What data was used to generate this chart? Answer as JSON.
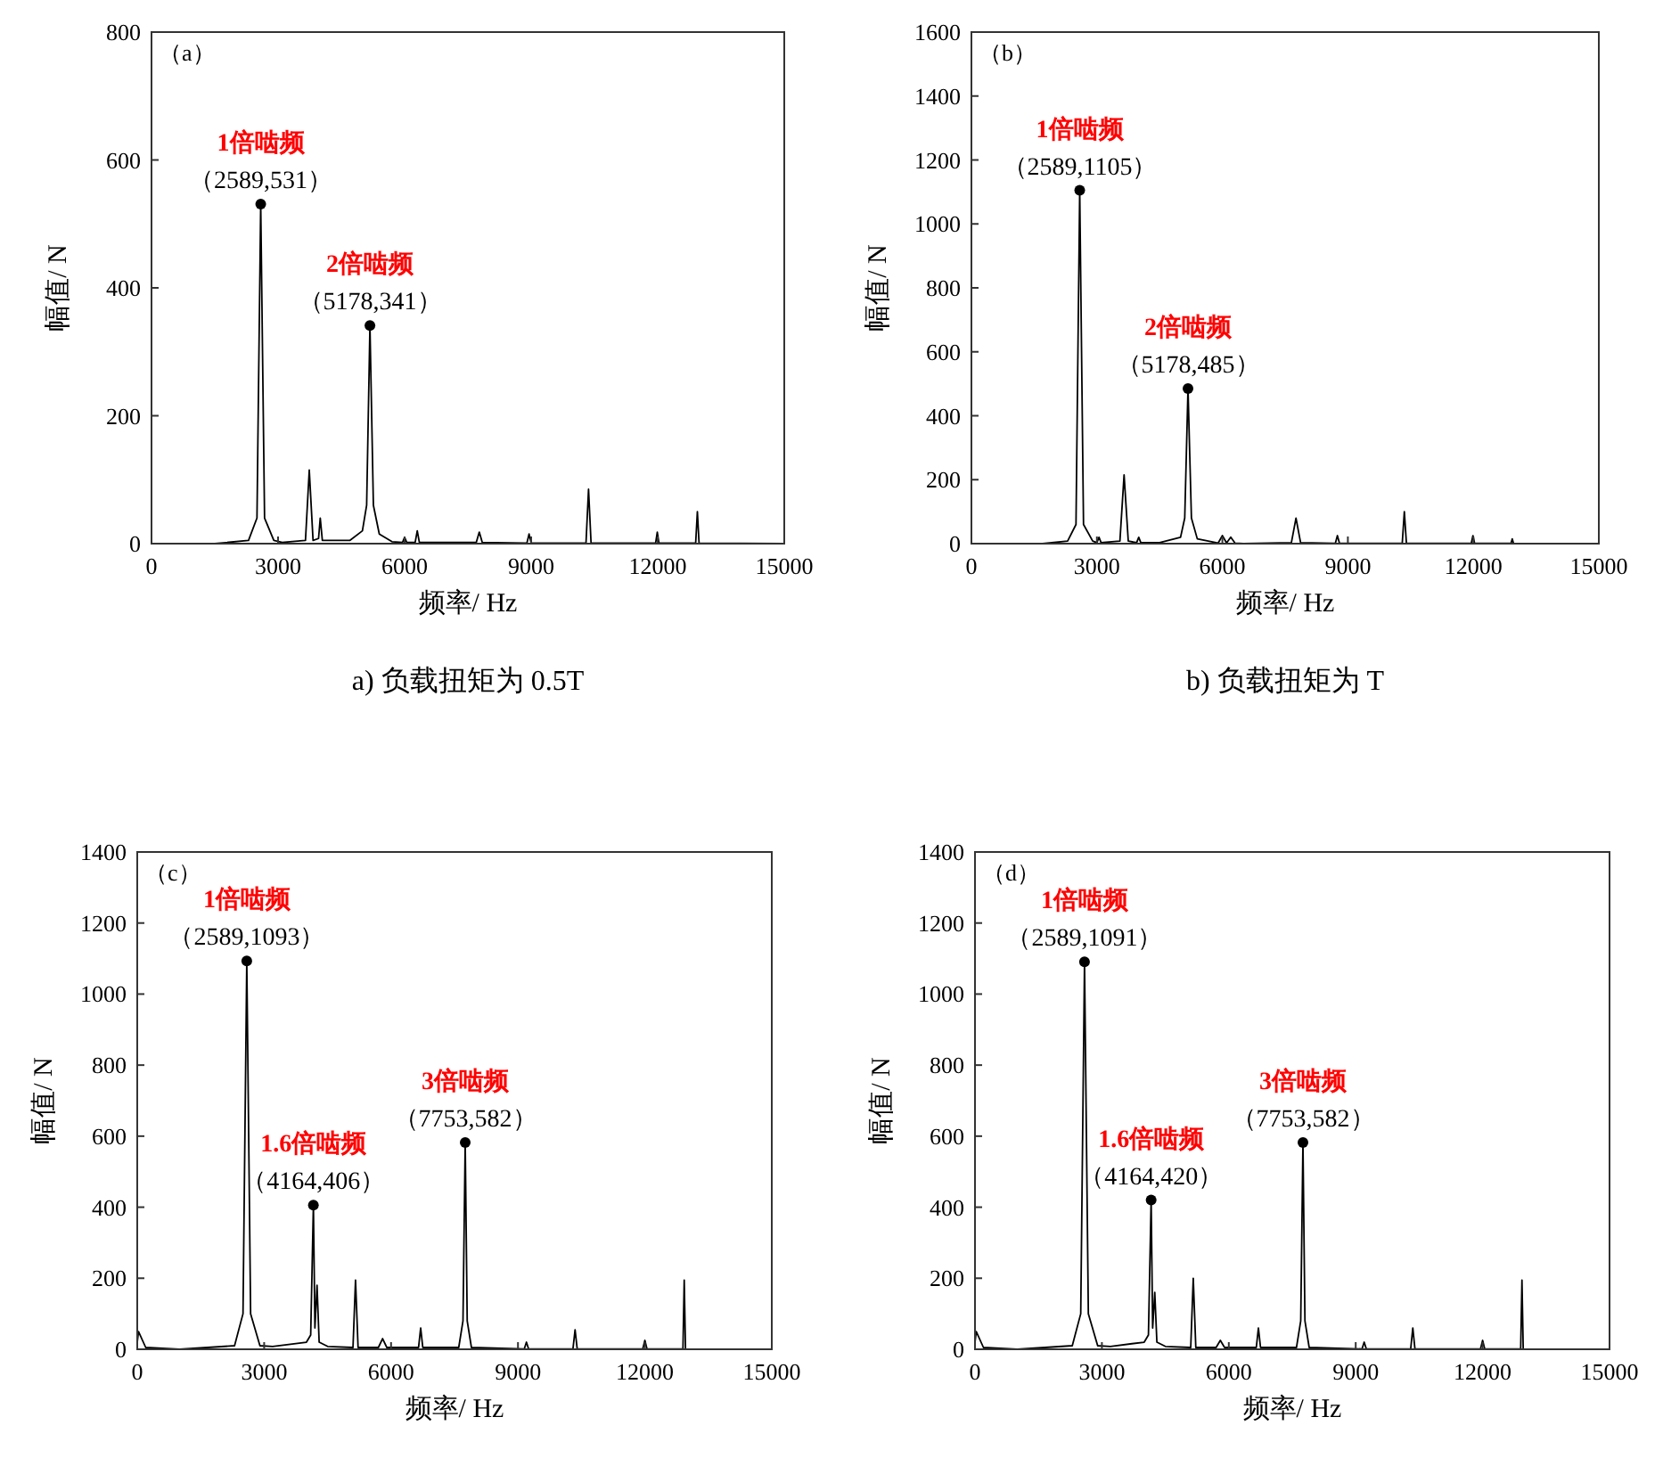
{
  "chart_data": [
    {
      "type": "line",
      "title": "（a）",
      "subtitle": "a) 负载扭矩为 0.5T",
      "xlabel": "频率/ Hz",
      "ylabel": "幅值/ N",
      "xlim": [
        0,
        15000
      ],
      "ylim": [
        0,
        800
      ],
      "xticks": [
        0,
        3000,
        6000,
        9000,
        12000,
        15000
      ],
      "yticks": [
        0,
        200,
        400,
        600,
        800
      ],
      "grid": false,
      "marker": "none",
      "line_style": "solid",
      "series": [
        {
          "color": "#000000",
          "x": [
            0,
            1500,
            2300,
            2500,
            2589,
            2680,
            2900,
            3100,
            3650,
            3740,
            3830,
            3960,
            4000,
            4050,
            4700,
            5000,
            5100,
            5178,
            5260,
            5400,
            5700,
            5950,
            6000,
            6050,
            6250,
            6300,
            6350,
            7700,
            7770,
            7840,
            8900,
            8950,
            9000,
            10300,
            10360,
            10420,
            11950,
            11990,
            12030,
            12900,
            12940,
            12980,
            15000
          ],
          "values": [
            0,
            0,
            5,
            40,
            531,
            40,
            5,
            2,
            5,
            115,
            5,
            8,
            40,
            5,
            5,
            20,
            60,
            341,
            60,
            15,
            3,
            2,
            10,
            2,
            2,
            20,
            2,
            2,
            18,
            2,
            1,
            15,
            1,
            1,
            85,
            1,
            1,
            18,
            1,
            1,
            50,
            1,
            0
          ]
        }
      ],
      "annotations": [
        {
          "text": "1倍啮频",
          "x": 2589,
          "y": 531
        },
        {
          "text": "（2589,531）",
          "x": 2589,
          "y": 531
        },
        {
          "text": "2倍啮频",
          "x": 5178,
          "y": 341
        },
        {
          "text": "（5178,341）",
          "x": 5178,
          "y": 341
        }
      ]
    },
    {
      "type": "line",
      "title": "（b）",
      "subtitle": "b) 负载扭矩为 T",
      "xlabel": "频率/ Hz",
      "ylabel": "幅值/ N",
      "xlim": [
        0,
        15000
      ],
      "ylim": [
        0,
        1600
      ],
      "xticks": [
        0,
        3000,
        6000,
        9000,
        12000,
        15000
      ],
      "yticks": [
        0,
        200,
        400,
        600,
        800,
        1000,
        1200,
        1400,
        1600
      ],
      "grid": false,
      "marker": "none",
      "line_style": "solid",
      "series": [
        {
          "color": "#000000",
          "x": [
            0,
            1700,
            2300,
            2500,
            2589,
            2680,
            2900,
            3000,
            3050,
            3100,
            3550,
            3650,
            3750,
            3950,
            4000,
            4050,
            4500,
            5000,
            5100,
            5178,
            5260,
            5400,
            5900,
            6000,
            6100,
            6200,
            6300,
            6500,
            7650,
            7760,
            7870,
            8700,
            8750,
            8800,
            10300,
            10350,
            10400,
            11950,
            11990,
            12030,
            12900,
            12930,
            12960,
            15000
          ],
          "values": [
            0,
            0,
            8,
            60,
            1105,
            60,
            8,
            3,
            20,
            3,
            8,
            215,
            8,
            3,
            20,
            3,
            3,
            20,
            80,
            485,
            80,
            15,
            2,
            25,
            2,
            20,
            2,
            0,
            3,
            80,
            3,
            1,
            25,
            1,
            1,
            100,
            1,
            1,
            25,
            1,
            1,
            15,
            1,
            0
          ]
        }
      ],
      "annotations": [
        {
          "text": "1倍啮频",
          "x": 2589,
          "y": 1105
        },
        {
          "text": "（2589,1105）",
          "x": 2589,
          "y": 1105
        },
        {
          "text": "2倍啮频",
          "x": 5178,
          "y": 485
        },
        {
          "text": "（5178,485）",
          "x": 5178,
          "y": 485
        }
      ]
    },
    {
      "type": "line",
      "title": "（c）",
      "xlabel": "频率/ Hz",
      "ylabel": "幅值/ N",
      "xlim": [
        0,
        15000
      ],
      "ylim": [
        0,
        1400
      ],
      "xticks": [
        0,
        3000,
        6000,
        9000,
        12000,
        15000
      ],
      "yticks": [
        0,
        200,
        400,
        600,
        800,
        1000,
        1200,
        1400
      ],
      "grid": false,
      "marker": "none",
      "line_style": "solid",
      "series": [
        {
          "color": "#000000",
          "x": [
            0,
            30,
            200,
            1000,
            2300,
            2500,
            2589,
            2680,
            2900,
            3200,
            4000,
            4100,
            4164,
            4200,
            4250,
            4300,
            4500,
            5100,
            5160,
            5220,
            5700,
            5800,
            5900,
            6650,
            6700,
            6750,
            7600,
            7700,
            7753,
            7800,
            7900,
            9150,
            9200,
            9250,
            10300,
            10350,
            10400,
            11950,
            12000,
            12050,
            12900,
            12930,
            12960,
            15000
          ],
          "values": [
            20,
            50,
            5,
            0,
            10,
            100,
            1093,
            100,
            10,
            8,
            20,
            40,
            406,
            60,
            180,
            20,
            8,
            5,
            195,
            5,
            5,
            30,
            5,
            5,
            60,
            5,
            5,
            80,
            582,
            80,
            5,
            1,
            20,
            1,
            1,
            55,
            1,
            1,
            25,
            1,
            1,
            195,
            1,
            0
          ]
        }
      ],
      "annotations": [
        {
          "text": "1倍啮频",
          "x": 2589,
          "y": 1093
        },
        {
          "text": "（2589,1093）",
          "x": 2589,
          "y": 1093
        },
        {
          "text": "1.6倍啮频",
          "x": 4164,
          "y": 406
        },
        {
          "text": "（4164,406）",
          "x": 4164,
          "y": 406
        },
        {
          "text": "3倍啮频",
          "x": 7753,
          "y": 582
        },
        {
          "text": "（7753,582）",
          "x": 7753,
          "y": 582
        }
      ]
    },
    {
      "type": "line",
      "title": "（d）",
      "xlabel": "频率/ Hz",
      "ylabel": "幅值/ N",
      "xlim": [
        0,
        15000
      ],
      "ylim": [
        0,
        1400
      ],
      "xticks": [
        0,
        3000,
        6000,
        9000,
        12000,
        15000
      ],
      "yticks": [
        0,
        200,
        400,
        600,
        800,
        1000,
        1200,
        1400
      ],
      "grid": false,
      "marker": "none",
      "line_style": "solid",
      "series": [
        {
          "color": "#000000",
          "x": [
            0,
            30,
            200,
            1000,
            2300,
            2500,
            2589,
            2680,
            2900,
            3200,
            4000,
            4100,
            4164,
            4200,
            4250,
            4300,
            4500,
            5100,
            5160,
            5220,
            5700,
            5800,
            5900,
            6650,
            6700,
            6750,
            7600,
            7700,
            7753,
            7800,
            7900,
            9150,
            9200,
            9250,
            10300,
            10350,
            10400,
            11950,
            12000,
            12050,
            12900,
            12930,
            12960,
            15000
          ],
          "values": [
            20,
            50,
            5,
            0,
            10,
            100,
            1091,
            100,
            10,
            8,
            20,
            40,
            420,
            60,
            160,
            20,
            8,
            5,
            200,
            5,
            5,
            25,
            5,
            5,
            60,
            5,
            5,
            80,
            582,
            80,
            5,
            1,
            20,
            1,
            1,
            60,
            1,
            1,
            25,
            1,
            1,
            195,
            1,
            0
          ]
        }
      ],
      "annotations": [
        {
          "text": "1倍啮频",
          "x": 2589,
          "y": 1091
        },
        {
          "text": "（2589,1091）",
          "x": 2589,
          "y": 1091
        },
        {
          "text": "1.6倍啮频",
          "x": 4164,
          "y": 420
        },
        {
          "text": "（4164,420）",
          "x": 4164,
          "y": 420
        },
        {
          "text": "3倍啮频",
          "x": 7753,
          "y": 582
        },
        {
          "text": "（7753,582）",
          "x": 7753,
          "y": 582
        }
      ]
    }
  ]
}
